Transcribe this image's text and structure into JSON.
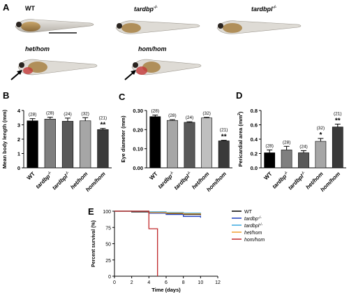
{
  "panel_a": {
    "letter": "A",
    "fish": [
      {
        "genotype": "WT",
        "arrow": false,
        "edema": false
      },
      {
        "genotype": "tardbp",
        "superscript": "-/-",
        "arrow": false,
        "edema": false
      },
      {
        "genotype": "tardbpl",
        "superscript": "-/-",
        "arrow": false,
        "edema": false
      },
      {
        "genotype": "het/hom",
        "arrow": true,
        "edema": true
      },
      {
        "genotype": "hom/hom",
        "arrow": true,
        "edema": true
      }
    ]
  },
  "chart_data": [
    {
      "panel": "B",
      "type": "bar",
      "ylabel": "Mean body length (mm)",
      "ylim": [
        0,
        4
      ],
      "yticks": [
        0,
        1,
        2,
        3,
        4
      ],
      "categories": [
        "WT",
        "tardbp-/-",
        "tardbpl-/-",
        "het/hom",
        "hom/hom"
      ],
      "values": [
        3.28,
        3.4,
        3.25,
        3.28,
        2.67
      ],
      "errors": [
        0.15,
        0.13,
        0.22,
        0.22,
        0.08
      ],
      "n_labels": [
        "(28)",
        "(28)",
        "(24)",
        "(32)",
        "(21)"
      ],
      "significance": [
        "",
        "",
        "",
        "",
        "**"
      ],
      "colors": [
        "#000000",
        "#7f7f7f",
        "#595959",
        "#a6a6a6",
        "#3a3a3a"
      ]
    },
    {
      "panel": "C",
      "type": "bar",
      "ylabel": "Eye diameter (mm)",
      "ylim": [
        0,
        0.3
      ],
      "yticks": [
        0,
        0.1,
        0.2,
        0.3
      ],
      "ytick_labels": [
        "0.00",
        "0.10",
        "0.20",
        "0.30"
      ],
      "categories": [
        "WT",
        "tardbp-/-",
        "tardbpl-/-",
        "het/hom",
        "hom/hom"
      ],
      "values": [
        0.268,
        0.248,
        0.238,
        0.261,
        0.141
      ],
      "errors": [
        0.008,
        0.004,
        0.003,
        0.003,
        0.003
      ],
      "n_labels": [
        "(28)",
        "(28)",
        "(24)",
        "(32)",
        "(21)"
      ],
      "significance": [
        "",
        "",
        "",
        "",
        "**"
      ],
      "colors": [
        "#000000",
        "#a6a6a6",
        "#595959",
        "#bfbfbf",
        "#3a3a3a"
      ]
    },
    {
      "panel": "D",
      "type": "bar",
      "ylabel": "Pericardial area (mm2)",
      "ylim": [
        0,
        0.8
      ],
      "yticks": [
        0,
        0.2,
        0.4,
        0.6,
        0.8
      ],
      "ytick_labels": [
        "0.0",
        "0.2",
        "0.4",
        "0.6",
        "0.8"
      ],
      "categories": [
        "WT",
        "tardbp-/-",
        "tardbpl-/-",
        "het/hom",
        "hom/hom"
      ],
      "values": [
        0.21,
        0.25,
        0.21,
        0.37,
        0.57
      ],
      "errors": [
        0.04,
        0.05,
        0.03,
        0.04,
        0.04
      ],
      "n_labels": [
        "(28)",
        "(28)",
        "(24)",
        "(32)",
        "(21)"
      ],
      "significance": [
        "",
        "",
        "",
        "*",
        "**"
      ],
      "colors": [
        "#000000",
        "#7f7f7f",
        "#595959",
        "#a6a6a6",
        "#3a3a3a"
      ]
    },
    {
      "panel": "E",
      "type": "line",
      "xlabel": "Time (days)",
      "ylabel": "Percent survival (%)",
      "xlim": [
        0,
        12
      ],
      "ylim": [
        0,
        100
      ],
      "xticks": [
        0,
        2,
        4,
        6,
        8,
        10,
        12
      ],
      "yticks": [
        0,
        25,
        50,
        75,
        100
      ],
      "series": [
        {
          "name": "WT",
          "color": "#000000",
          "x": [
            0,
            2,
            4,
            6,
            8,
            10
          ],
          "y": [
            100,
            99,
            97,
            96,
            95,
            94
          ]
        },
        {
          "name": "tardbp-/-",
          "color": "#1f3fbf",
          "x": [
            0,
            2,
            4,
            6,
            8,
            10
          ],
          "y": [
            100,
            100,
            97,
            95,
            92,
            90
          ]
        },
        {
          "name": "tardbpl-/-",
          "color": "#39a9e0",
          "x": [
            0,
            2,
            4,
            6,
            8,
            10
          ],
          "y": [
            100,
            100,
            99,
            98,
            97,
            96
          ]
        },
        {
          "name": "het/hom",
          "color": "#f0a030",
          "x": [
            0,
            2,
            4,
            6,
            8,
            10
          ],
          "y": [
            100,
            100,
            98,
            97,
            96,
            95
          ]
        },
        {
          "name": "hom/hom",
          "color": "#c0282a",
          "x": [
            0,
            3,
            4,
            5,
            5
          ],
          "y": [
            100,
            100,
            73,
            73,
            0
          ]
        }
      ]
    }
  ]
}
